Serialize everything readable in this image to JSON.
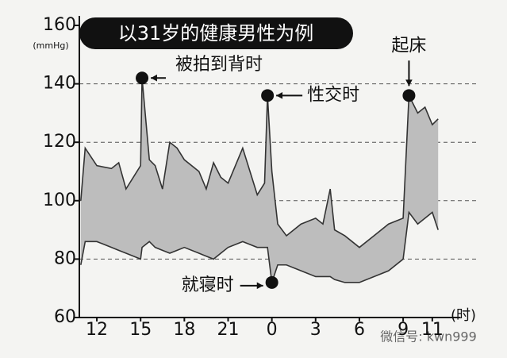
{
  "chart_data": {
    "type": "band",
    "title": "以31岁的健康男性为例",
    "y_unit": "(mmHg)",
    "x_unit": "(时)",
    "watermark": "微信号: kwn999",
    "x": [
      10.9,
      11.2,
      12,
      13,
      13.5,
      14,
      15,
      15.1,
      15.6,
      16,
      16.5,
      17,
      17.5,
      18,
      19,
      19.5,
      20,
      20.5,
      21,
      22,
      22.5,
      23,
      23.5,
      23.7,
      24,
      24.4,
      25,
      26,
      27,
      27.5,
      28,
      28.3,
      29,
      30,
      31,
      32,
      33,
      33.4,
      34,
      34.5,
      35,
      35.4
    ],
    "series": [
      {
        "color": "#333333",
        "values": [
          100,
          118,
          112,
          111,
          113,
          104,
          112,
          142,
          114,
          112,
          104,
          120,
          118,
          114,
          110,
          104,
          113,
          108,
          106,
          118,
          110,
          102,
          106,
          136,
          110,
          92,
          88,
          92,
          94,
          92,
          104,
          90,
          88,
          84,
          88,
          92,
          94,
          136,
          130,
          132,
          126,
          128
        ]
      },
      {
        "color": "#333333",
        "values": [
          78,
          86,
          86,
          84,
          83,
          82,
          80,
          84,
          86,
          84,
          83,
          82,
          83,
          84,
          82,
          81,
          80,
          82,
          84,
          86,
          85,
          84,
          84,
          84,
          72,
          78,
          78,
          76,
          74,
          74,
          74,
          73,
          72,
          72,
          74,
          76,
          80,
          96,
          92,
          94,
          96,
          90
        ]
      }
    ],
    "fill": "#bdbdbd",
    "annotations": [
      {
        "text": "被拍到背时",
        "x": 15.1,
        "y": 142
      },
      {
        "text": "性交时",
        "x": 23.7,
        "y": 136
      },
      {
        "text": "就寝时",
        "x": 24,
        "y": 72
      },
      {
        "text": "起床",
        "x": 33.4,
        "y": 136
      }
    ],
    "xlim": [
      10.8,
      38
    ],
    "xticks": [
      12,
      15,
      18,
      21,
      {
        "value": 24,
        "label": "0"
      },
      {
        "value": 27,
        "label": "3"
      },
      {
        "value": 30,
        "label": "6"
      },
      {
        "value": 33,
        "label": "9"
      },
      {
        "value": 35,
        "label": "11"
      }
    ],
    "ylim": [
      60,
      160
    ],
    "yticks": [
      60,
      80,
      100,
      120,
      140,
      160
    ],
    "grid": true
  }
}
